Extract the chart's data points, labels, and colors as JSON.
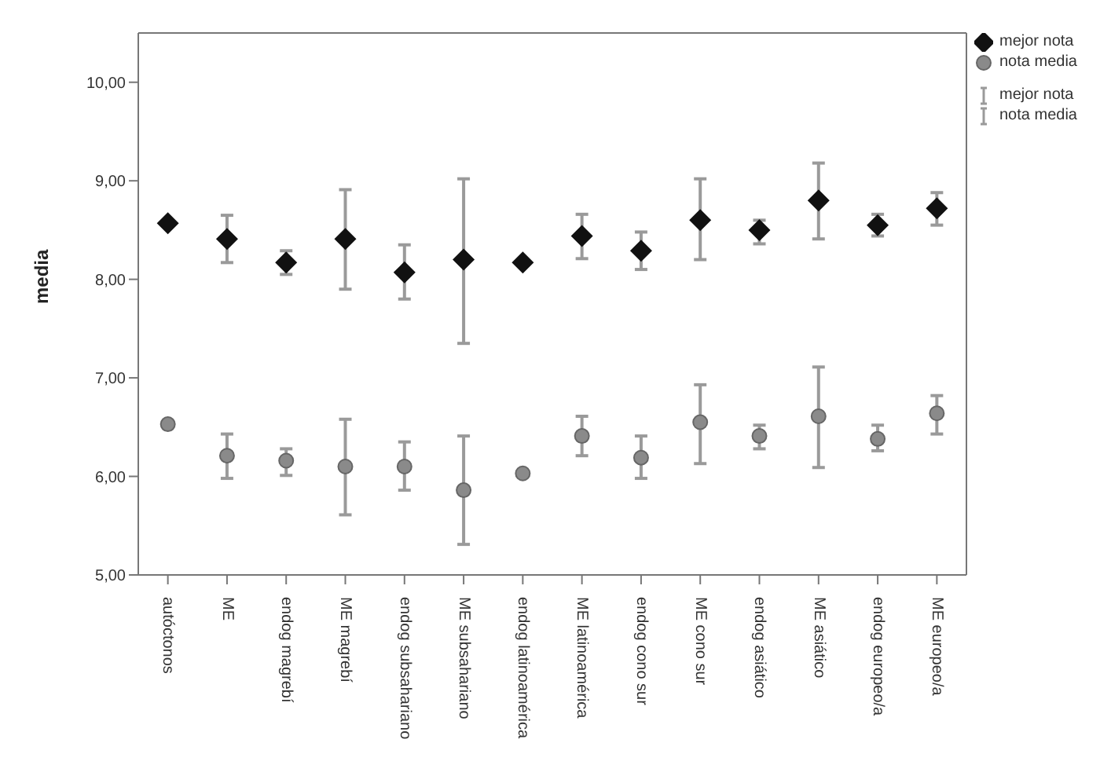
{
  "chart_data": {
    "type": "scatter",
    "ylabel": "media",
    "categories": [
      "autóctonos",
      "ME",
      "endog magrebí",
      "ME magrebí",
      "endog subsahariano",
      "ME subsahariano",
      "endog latinoamérica",
      "ME latinoamérica",
      "endog cono sur",
      "ME cono sur",
      "endog asiático",
      "ME asiático",
      "endog europeo/a",
      "ME europeo/a"
    ],
    "series": [
      {
        "name": "mejor nota",
        "color": "#111111",
        "marker": "diamond",
        "values": [
          8.57,
          8.41,
          8.17,
          8.41,
          8.07,
          8.2,
          8.17,
          8.44,
          8.29,
          8.6,
          8.5,
          8.8,
          8.55,
          8.72
        ],
        "errors": [
          null,
          [
            8.17,
            8.65
          ],
          [
            8.05,
            8.29
          ],
          [
            7.9,
            8.91
          ],
          [
            7.8,
            8.35
          ],
          [
            7.35,
            9.02
          ],
          null,
          [
            8.21,
            8.66
          ],
          [
            8.1,
            8.48
          ],
          [
            8.2,
            9.02
          ],
          [
            8.36,
            8.6
          ],
          [
            8.41,
            9.18
          ],
          [
            8.44,
            8.66
          ],
          [
            8.55,
            8.88
          ]
        ]
      },
      {
        "name": "nota media",
        "color": "#8a8a8a",
        "marker": "circle",
        "values": [
          6.53,
          6.21,
          6.16,
          6.1,
          6.1,
          5.86,
          6.03,
          6.41,
          6.19,
          6.55,
          6.41,
          6.61,
          6.38,
          6.64
        ],
        "errors": [
          null,
          [
            5.98,
            6.43
          ],
          [
            6.01,
            6.28
          ],
          [
            5.61,
            6.58
          ],
          [
            5.86,
            6.35
          ],
          [
            5.31,
            6.41
          ],
          null,
          [
            6.21,
            6.61
          ],
          [
            5.98,
            6.41
          ],
          [
            6.13,
            6.93
          ],
          [
            6.28,
            6.52
          ],
          [
            6.09,
            7.11
          ],
          [
            6.26,
            6.52
          ],
          [
            6.43,
            6.82
          ]
        ]
      }
    ],
    "ylim": [
      5,
      10.5
    ],
    "yticks": [
      {
        "value": 5,
        "label": "5,00"
      },
      {
        "value": 6,
        "label": "6,00"
      },
      {
        "value": 7,
        "label": "7,00"
      },
      {
        "value": 8,
        "label": "8,00"
      },
      {
        "value": 9,
        "label": "9,00"
      },
      {
        "value": 10,
        "label": "10,00"
      }
    ],
    "grid": false,
    "legend": "top right"
  }
}
